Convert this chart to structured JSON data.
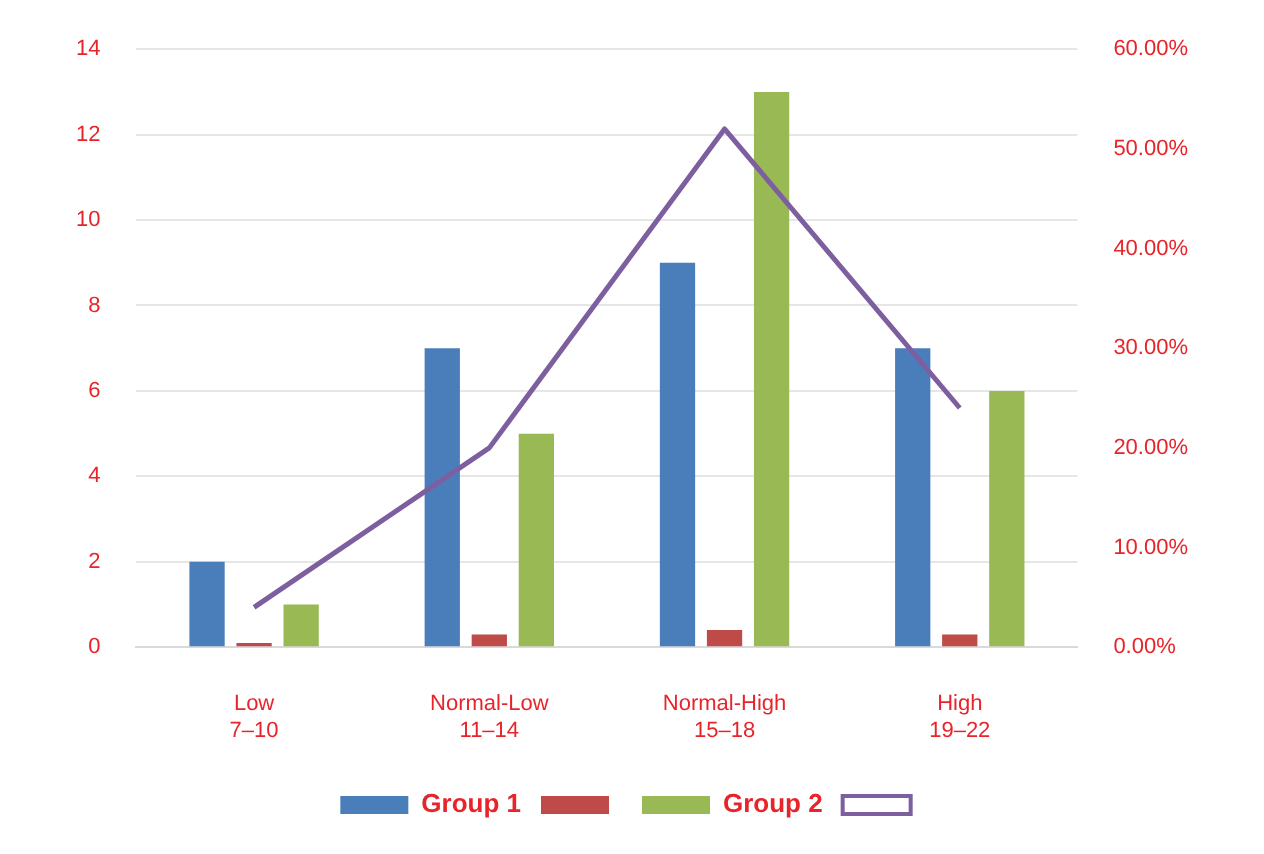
{
  "chart_data": {
    "type": "bar",
    "categories": [
      "Low\n7–10",
      "Normal-Low\n11–14",
      "Normal-High\n15–18",
      "High\n19–22"
    ],
    "series": [
      {
        "name": "Group 1",
        "color": "#4a7ebb",
        "values": [
          2,
          7,
          9,
          7
        ]
      },
      {
        "color": "#be4b48",
        "values": [
          0.1,
          0.3,
          0.4,
          0.3
        ]
      },
      {
        "name": "Group 2",
        "color": "#98b954",
        "values": [
          1,
          5,
          13,
          6
        ]
      },
      {
        "type": "line",
        "axis": "y2",
        "color": "#7d5fa0",
        "values": [
          4,
          20,
          52,
          24
        ]
      }
    ],
    "ylim": [
      0,
      14
    ],
    "yticks": [
      0,
      2,
      4,
      6,
      8,
      10,
      12,
      14
    ],
    "y2lim": [
      0,
      60
    ],
    "y2ticks": [
      {
        "value": 0,
        "label": "0.00%"
      },
      {
        "value": 10,
        "label": "10.00%"
      },
      {
        "value": 20,
        "label": "20.00%"
      },
      {
        "value": 30,
        "label": "30.00%"
      },
      {
        "value": 40,
        "label": "40.00%"
      },
      {
        "value": 50,
        "label": "50.00%"
      },
      {
        "value": 60,
        "label": "60.00%"
      }
    ],
    "grid": "y",
    "legend": "bottom",
    "marker": "none"
  }
}
